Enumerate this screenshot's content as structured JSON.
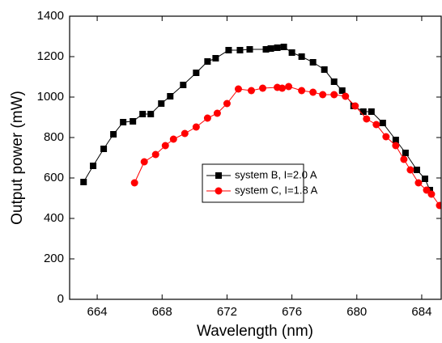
{
  "chart_data": {
    "type": "line",
    "x_label": "Wavelength (nm)",
    "y_label": "Output power (mW)",
    "xlim": [
      662.3,
      685.2
    ],
    "ylim": [
      0,
      1400
    ],
    "xticks": [
      664,
      668,
      672,
      676,
      680,
      684
    ],
    "yticks": [
      0,
      200,
      400,
      600,
      800,
      1000,
      1200,
      1400
    ],
    "legend_position": "center",
    "series": [
      {
        "name": "system B, I=2.0 A",
        "color": "#000000",
        "marker": "square",
        "x": [
          663.16,
          663.75,
          664.4,
          665.0,
          665.6,
          666.2,
          666.8,
          667.3,
          667.95,
          668.5,
          669.3,
          670.1,
          670.8,
          671.3,
          672.1,
          672.8,
          673.4,
          674.4,
          674.7,
          675.1,
          675.5,
          676.0,
          676.6,
          677.3,
          678.0,
          678.6,
          679.1,
          679.8,
          680.4,
          680.9,
          681.6,
          682.4,
          683.0,
          683.7,
          684.2,
          684.5
        ],
        "values": [
          580,
          660,
          744,
          816,
          876,
          880,
          916,
          916,
          968,
          1004,
          1060,
          1120,
          1176,
          1192,
          1232,
          1232,
          1236,
          1236,
          1240,
          1244,
          1248,
          1220,
          1200,
          1172,
          1136,
          1076,
          1032,
          956,
          928,
          928,
          872,
          788,
          724,
          640,
          596,
          540
        ]
      },
      {
        "name": "system C, I=1.8 A",
        "color": "#ff0000",
        "marker": "circle",
        "x": [
          666.3,
          666.9,
          667.6,
          668.2,
          668.7,
          669.4,
          670.1,
          670.8,
          671.4,
          672.0,
          672.7,
          673.5,
          674.2,
          675.1,
          675.4,
          675.8,
          676.6,
          677.3,
          677.9,
          678.6,
          679.3,
          679.9,
          680.6,
          681.2,
          681.8,
          682.4,
          682.9,
          683.3,
          683.8,
          684.3,
          684.6,
          685.1
        ],
        "values": [
          576,
          680,
          716,
          760,
          792,
          820,
          852,
          896,
          920,
          968,
          1040,
          1032,
          1044,
          1048,
          1044,
          1052,
          1032,
          1024,
          1012,
          1012,
          1004,
          956,
          892,
          864,
          804,
          760,
          692,
          640,
          576,
          540,
          520,
          464
        ]
      }
    ]
  }
}
